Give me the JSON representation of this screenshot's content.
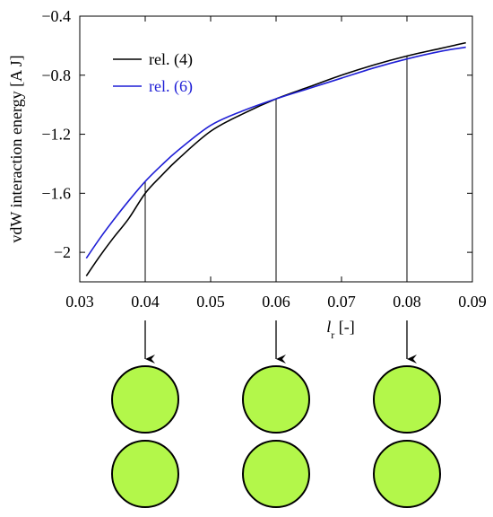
{
  "chart_data": {
    "type": "line",
    "ylabel": "vdW interaction energy [A J]",
    "xlabel": "l",
    "xlabel_sub": "r",
    "xlabel_unit": " [-]",
    "xlim": [
      0.03,
      0.09
    ],
    "ylim": [
      -2.2,
      -0.4
    ],
    "xticks": [
      0.03,
      0.04,
      0.05,
      0.06,
      0.07,
      0.08,
      0.09
    ],
    "xtick_labels": [
      "0.03",
      "0.04",
      "0.05",
      "0.06",
      "0.07",
      "0.08",
      "0.09"
    ],
    "yticks": [
      -0.4,
      -0.8,
      -1.2,
      -1.6,
      -2.0
    ],
    "ytick_labels": [
      "−0.4",
      "−0.8",
      "−1.2",
      "−1.6",
      "−2"
    ],
    "grid": false,
    "legend_position": "top-left",
    "series": [
      {
        "name": "rel. (4)",
        "color": "#000000",
        "x": [
          0.031,
          0.033,
          0.035,
          0.0375,
          0.04,
          0.0425,
          0.045,
          0.05,
          0.055,
          0.06,
          0.065,
          0.07,
          0.075,
          0.08,
          0.085,
          0.089
        ],
        "y": [
          -2.16,
          -2.03,
          -1.91,
          -1.77,
          -1.6,
          -1.48,
          -1.37,
          -1.18,
          -1.06,
          -0.96,
          -0.88,
          -0.8,
          -0.73,
          -0.67,
          -0.62,
          -0.58
        ]
      },
      {
        "name": "rel. (6)",
        "color": "#1f1fd6",
        "x": [
          0.031,
          0.033,
          0.035,
          0.0375,
          0.04,
          0.0425,
          0.045,
          0.05,
          0.055,
          0.06,
          0.065,
          0.07,
          0.075,
          0.08,
          0.085,
          0.089
        ],
        "y": [
          -2.04,
          -1.91,
          -1.79,
          -1.65,
          -1.52,
          -1.41,
          -1.31,
          -1.14,
          -1.04,
          -0.96,
          -0.89,
          -0.82,
          -0.75,
          -0.69,
          -0.64,
          -0.61
        ]
      }
    ],
    "markers": [
      {
        "x": 0.04,
        "y": -1.52
      },
      {
        "x": 0.06,
        "y": -0.96
      },
      {
        "x": 0.08,
        "y": -0.67
      }
    ],
    "particle_fill": "#b3f74a",
    "particle_stroke": "#000000"
  }
}
